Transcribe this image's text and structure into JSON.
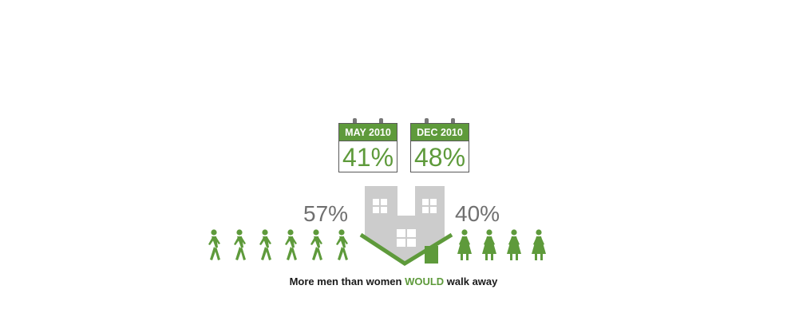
{
  "calendars": [
    {
      "label": "MAY 2010",
      "value": "41%"
    },
    {
      "label": "DEC 2010",
      "value": "48%"
    }
  ],
  "men": {
    "value": "57%",
    "count": 6
  },
  "women": {
    "value": "40%",
    "count": 4
  },
  "caption": {
    "before": "More men than women ",
    "highlight": "WOULD",
    "after": " walk away"
  },
  "colors": {
    "accent": "#5e9a3b",
    "house": "#cccccc",
    "text_gray": "#707070"
  },
  "icons": [
    "calendar-icon",
    "house-icon",
    "man-walking-icon",
    "woman-walking-icon"
  ]
}
